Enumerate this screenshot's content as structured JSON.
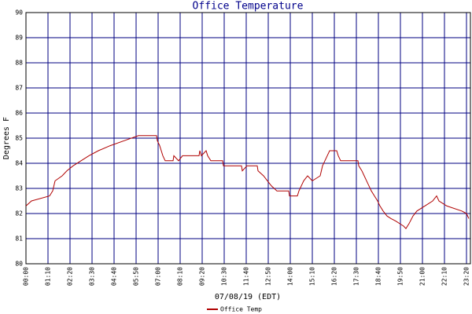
{
  "chart_data": {
    "type": "line",
    "title": "Office Temperature",
    "x_label": "07/08/19 (EDT)",
    "y_label": "Degrees F",
    "x": [
      0,
      17.5,
      75,
      85,
      92.5,
      115,
      130,
      150,
      175,
      200,
      230,
      267.5,
      312.5,
      357.5,
      415,
      417.5,
      425,
      430,
      435,
      442.5,
      467.5,
      470,
      485,
      497.5,
      550,
      552.5,
      557.5,
      572.5,
      577.5,
      587.5,
      625,
      627.5,
      685,
      687.5,
      702.5,
      735,
      737.5,
      755,
      767.5,
      780,
      797.5,
      835,
      837.5,
      862.5,
      867.5,
      875,
      882.5,
      895,
      910,
      935,
      942.5,
      950,
      957.5,
      965,
      987.5,
      992.5,
      1000,
      1055,
      1057.5,
      1067.5,
      1075,
      1082.5,
      1090,
      1097.5,
      1107.5,
      1117.5,
      1125,
      1135,
      1147.5,
      1160,
      1175,
      1200,
      1207.5,
      1217.5,
      1230,
      1242.5,
      1267.5,
      1292.5,
      1305,
      1312.5,
      1337.5,
      1385,
      1400,
      1407.5
    ],
    "series": [
      {
        "name": "Office Temp",
        "color": "#b00000",
        "values": [
          82.3,
          82.5,
          82.7,
          82.9,
          83.3,
          83.5,
          83.7,
          83.9,
          84.1,
          84.3,
          84.5,
          84.7,
          84.9,
          85.1,
          85.1,
          84.9,
          84.7,
          84.5,
          84.3,
          84.1,
          84.1,
          84.3,
          84.1,
          84.3,
          84.3,
          84.5,
          84.3,
          84.5,
          84.3,
          84.1,
          84.1,
          83.9,
          83.9,
          83.7,
          83.9,
          83.9,
          83.7,
          83.5,
          83.3,
          83.1,
          82.9,
          82.9,
          82.7,
          82.7,
          82.9,
          83.1,
          83.3,
          83.5,
          83.3,
          83.5,
          83.9,
          84.1,
          84.3,
          84.5,
          84.5,
          84.3,
          84.1,
          84.1,
          83.9,
          83.7,
          83.5,
          83.3,
          83.1,
          82.9,
          82.7,
          82.5,
          82.3,
          82.1,
          81.9,
          81.8,
          81.7,
          81.5,
          81.4,
          81.6,
          81.9,
          82.1,
          82.3,
          82.5,
          82.7,
          82.5,
          82.3,
          82.1,
          82.0,
          81.8
        ]
      }
    ],
    "xlim": [
      0,
      1412.5
    ],
    "xticks": [
      {
        "value": 0,
        "label": "00:00"
      },
      {
        "value": 70,
        "label": "01:10"
      },
      {
        "value": 140,
        "label": "02:20"
      },
      {
        "value": 210,
        "label": "03:30"
      },
      {
        "value": 280,
        "label": "04:40"
      },
      {
        "value": 350,
        "label": "05:50"
      },
      {
        "value": 420,
        "label": "07:00"
      },
      {
        "value": 490,
        "label": "08:10"
      },
      {
        "value": 560,
        "label": "09:20"
      },
      {
        "value": 630,
        "label": "10:30"
      },
      {
        "value": 700,
        "label": "11:40"
      },
      {
        "value": 770,
        "label": "12:50"
      },
      {
        "value": 840,
        "label": "14:00"
      },
      {
        "value": 910,
        "label": "15:10"
      },
      {
        "value": 980,
        "label": "16:20"
      },
      {
        "value": 1050,
        "label": "17:30"
      },
      {
        "value": 1120,
        "label": "18:40"
      },
      {
        "value": 1190,
        "label": "19:50"
      },
      {
        "value": 1260,
        "label": "21:00"
      },
      {
        "value": 1330,
        "label": "22:10"
      },
      {
        "value": 1400,
        "label": "23:20"
      }
    ],
    "ylim": [
      80,
      90
    ],
    "yticks": [
      80,
      81,
      82,
      83,
      84,
      85,
      86,
      87,
      88,
      89,
      90
    ],
    "grid": true,
    "grid_color": "#000080",
    "legend": "bottom"
  }
}
